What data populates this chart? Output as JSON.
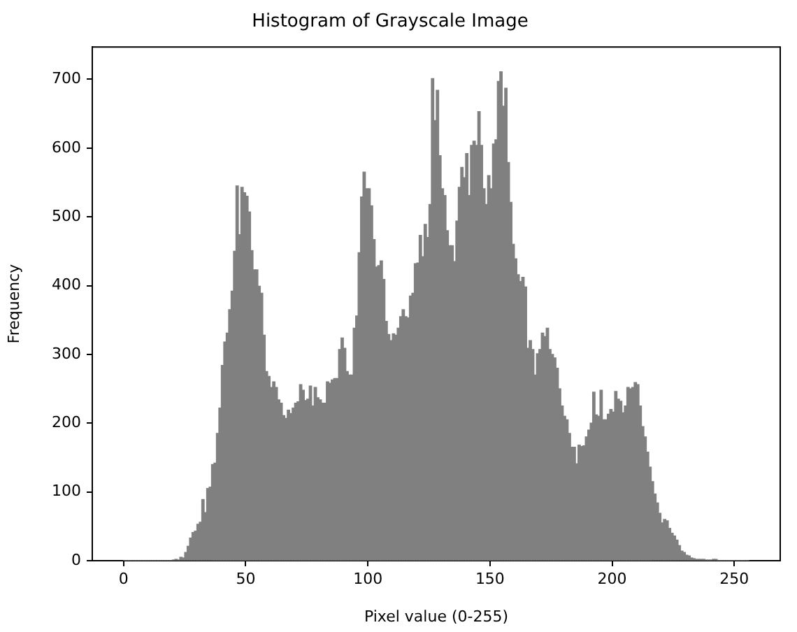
{
  "chart_data": {
    "type": "histogram",
    "title": "Histogram of Grayscale Image",
    "xlabel": "Pixel value (0-255)",
    "ylabel": "Frequency",
    "color": "#808080",
    "bins": [
      0,
      1,
      2,
      3,
      4,
      5,
      6,
      7,
      8,
      9,
      10,
      11,
      12,
      13,
      14,
      15,
      16,
      17,
      18,
      19,
      20,
      21,
      22,
      23,
      24,
      25,
      26,
      27,
      28,
      29,
      30,
      31,
      32,
      33,
      34,
      35,
      36,
      37,
      38,
      39,
      40,
      41,
      42,
      43,
      44,
      45,
      46,
      47,
      48,
      49,
      50,
      51,
      52,
      53,
      54,
      55,
      56,
      57,
      58,
      59,
      60,
      61,
      62,
      63,
      64,
      65,
      66,
      67,
      68,
      69,
      70,
      71,
      72,
      73,
      74,
      75,
      76,
      77,
      78,
      79,
      80,
      81,
      82,
      83,
      84,
      85,
      86,
      87,
      88,
      89,
      90,
      91,
      92,
      93,
      94,
      95,
      96,
      97,
      98,
      99,
      100,
      101,
      102,
      103,
      104,
      105,
      106,
      107,
      108,
      109,
      110,
      111,
      112,
      113,
      114,
      115,
      116,
      117,
      118,
      119,
      120,
      121,
      122,
      123,
      124,
      125,
      126,
      127,
      128,
      129,
      130,
      131,
      132,
      133,
      134,
      135,
      136,
      137,
      138,
      139,
      140,
      141,
      142,
      143,
      144,
      145,
      146,
      147,
      148,
      149,
      150,
      151,
      152,
      153,
      154,
      155,
      156,
      157,
      158,
      159,
      160,
      161,
      162,
      163,
      164,
      165,
      166,
      167,
      168,
      169,
      170,
      171,
      172,
      173,
      174,
      175,
      176,
      177,
      178,
      179,
      180,
      181,
      182,
      183,
      184,
      185,
      186,
      187,
      188,
      189,
      190,
      191,
      192,
      193,
      194,
      195,
      196,
      197,
      198,
      199,
      200,
      201,
      202,
      203,
      204,
      205,
      206,
      207,
      208,
      209,
      210,
      211,
      212,
      213,
      214,
      215,
      216,
      217,
      218,
      219,
      220,
      221,
      222,
      223,
      224,
      225,
      226,
      227,
      228,
      229,
      230,
      231,
      232,
      233,
      234,
      235,
      236,
      237,
      238,
      239,
      240,
      241,
      242,
      243,
      244,
      245,
      246,
      247,
      248,
      249,
      250,
      251,
      252,
      253,
      254,
      255,
      256
    ],
    "values": [
      0,
      0,
      0,
      0,
      0,
      0,
      0,
      0,
      0,
      0,
      0,
      0,
      0,
      0,
      0,
      0,
      0,
      0,
      0,
      0,
      1,
      2,
      1,
      5,
      4,
      12,
      21,
      33,
      41,
      43,
      53,
      56,
      89,
      70,
      105,
      107,
      140,
      142,
      185,
      222,
      284,
      318,
      331,
      365,
      392,
      450,
      545,
      474,
      543,
      535,
      530,
      507,
      451,
      423,
      423,
      399,
      389,
      328,
      275,
      268,
      252,
      260,
      252,
      234,
      229,
      211,
      207,
      219,
      214,
      222,
      229,
      231,
      256,
      248,
      233,
      235,
      254,
      225,
      252,
      237,
      234,
      229,
      229,
      260,
      258,
      263,
      265,
      265,
      307,
      324,
      309,
      275,
      270,
      270,
      338,
      356,
      448,
      529,
      565,
      541,
      541,
      516,
      467,
      427,
      429,
      436,
      409,
      348,
      329,
      320,
      330,
      328,
      338,
      355,
      365,
      355,
      353,
      385,
      389,
      432,
      433,
      473,
      442,
      489,
      470,
      518,
      701,
      640,
      684,
      589,
      541,
      531,
      480,
      458,
      458,
      435,
      494,
      543,
      572,
      557,
      592,
      531,
      604,
      610,
      604,
      653,
      604,
      541,
      518,
      560,
      541,
      606,
      612,
      697,
      711,
      661,
      687,
      579,
      521,
      460,
      439,
      416,
      406,
      412,
      398,
      309,
      320,
      307,
      270,
      301,
      307,
      331,
      326,
      338,
      307,
      300,
      295,
      280,
      250,
      225,
      210,
      205,
      185,
      165,
      165,
      141,
      168,
      166,
      167,
      180,
      190,
      200,
      245,
      212,
      210,
      248,
      205,
      205,
      213,
      220,
      216,
      246,
      235,
      232,
      215,
      225,
      252,
      250,
      252,
      259,
      256,
      225,
      195,
      180,
      158,
      136,
      115,
      97,
      84,
      69,
      55,
      60,
      58,
      47,
      40,
      36,
      30,
      22,
      14,
      12,
      8,
      7,
      4,
      3,
      2,
      2,
      2,
      2,
      1,
      1,
      1,
      2,
      2,
      0,
      0,
      0,
      0,
      0,
      0,
      0,
      0,
      0,
      0,
      0,
      0,
      0
    ],
    "xlim": [
      -12.8,
      268.8
    ],
    "ylim": [
      0,
      747
    ],
    "xticks": [
      0,
      50,
      100,
      150,
      200,
      250
    ],
    "yticks": [
      0,
      100,
      200,
      300,
      400,
      500,
      600,
      700
    ]
  }
}
